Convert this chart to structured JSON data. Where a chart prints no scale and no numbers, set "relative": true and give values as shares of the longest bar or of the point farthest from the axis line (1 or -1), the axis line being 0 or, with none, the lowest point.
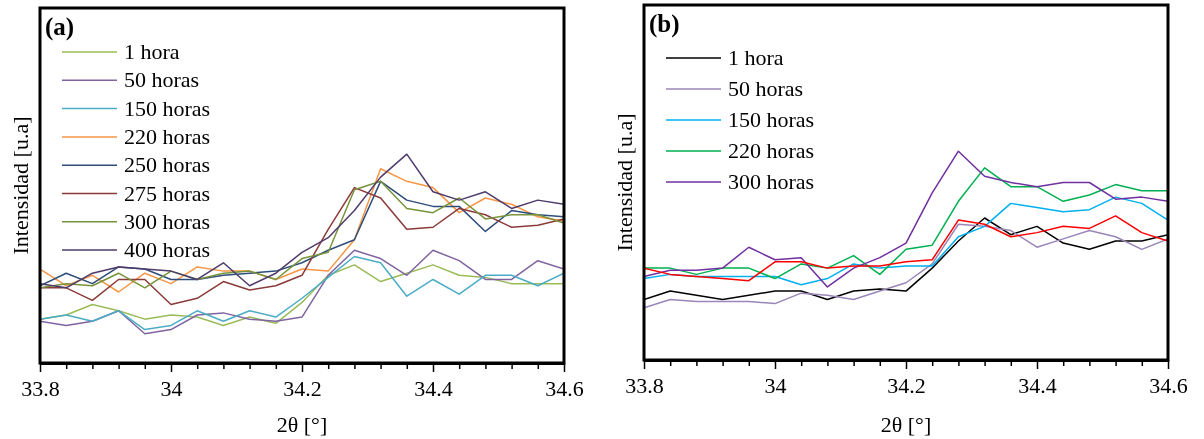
{
  "chart_data": [
    {
      "type": "line",
      "relative": true,
      "annotations": [
        "(a)"
      ],
      "xlabel": "2θ [°]",
      "ylabel": "Intensidad [u.a]",
      "legend": "top left",
      "tick_labels": "x",
      "grid": false,
      "marker": "none",
      "line_style": "solid",
      "xlim": [
        33.8,
        34.6
      ],
      "xticks": [
        33.8,
        {
          "value": 33.84,
          "label": null
        },
        {
          "value": 33.88,
          "label": null
        },
        {
          "value": 33.92,
          "label": null
        },
        {
          "value": 33.96,
          "label": null
        },
        34,
        {
          "value": 34.04,
          "label": null
        },
        {
          "value": 34.08,
          "label": null
        },
        {
          "value": 34.12,
          "label": null
        },
        {
          "value": 34.16,
          "label": null
        },
        34.2,
        {
          "value": 34.24,
          "label": null
        },
        {
          "value": 34.28,
          "label": null
        },
        {
          "value": 34.32,
          "label": null
        },
        {
          "value": 34.36,
          "label": null
        },
        34.4,
        {
          "value": 34.44,
          "label": null
        },
        {
          "value": 34.48,
          "label": null
        },
        {
          "value": 34.52,
          "label": null
        },
        {
          "value": 34.56,
          "label": null
        },
        34.6
      ],
      "x": [
        33.8,
        33.84,
        33.88,
        33.92,
        33.96,
        34,
        34.04,
        34.08,
        34.12,
        34.16,
        34.2,
        34.24,
        34.28,
        34.32,
        34.36,
        34.4,
        34.44,
        34.48,
        34.52,
        34.56,
        34.6
      ],
      "series": [
        {
          "name": "1 hora",
          "color": "#9bbb59",
          "values": [
            0.21,
            0.23,
            0.28,
            0.25,
            0.21,
            0.23,
            0.22,
            0.18,
            0.22,
            0.19,
            0.29,
            0.42,
            0.47,
            0.39,
            0.43,
            0.47,
            0.42,
            0.41,
            0.38,
            0.38,
            0.38
          ]
        },
        {
          "name": "50 horas",
          "color": "#8064a2",
          "values": [
            0.2,
            0.18,
            0.2,
            0.25,
            0.14,
            0.16,
            0.23,
            0.24,
            0.21,
            0.2,
            0.22,
            0.42,
            0.54,
            0.5,
            0.42,
            0.54,
            0.49,
            0.4,
            0.4,
            0.49,
            0.45
          ]
        },
        {
          "name": "150 horas",
          "color": "#4bacc6",
          "values": [
            0.21,
            0.23,
            0.2,
            0.25,
            0.16,
            0.18,
            0.25,
            0.2,
            0.25,
            0.22,
            0.31,
            0.41,
            0.51,
            0.48,
            0.32,
            0.4,
            0.33,
            0.42,
            0.42,
            0.37,
            0.43
          ]
        },
        {
          "name": "220 horas",
          "color": "#f79646",
          "values": [
            0.45,
            0.37,
            0.42,
            0.34,
            0.43,
            0.38,
            0.46,
            0.44,
            0.44,
            0.4,
            0.45,
            0.44,
            0.59,
            0.93,
            0.87,
            0.84,
            0.72,
            0.79,
            0.76,
            0.7,
            0.68
          ]
        },
        {
          "name": "250 horas",
          "color": "#2e4d7a",
          "values": [
            0.37,
            0.43,
            0.38,
            0.46,
            0.45,
            0.4,
            0.4,
            0.42,
            0.43,
            0.44,
            0.48,
            0.54,
            0.59,
            0.87,
            0.78,
            0.75,
            0.75,
            0.63,
            0.73,
            0.71,
            0.7
          ]
        },
        {
          "name": "275 horas",
          "color": "#8b3a3a",
          "values": [
            0.36,
            0.36,
            0.3,
            0.4,
            0.4,
            0.28,
            0.31,
            0.39,
            0.35,
            0.37,
            0.42,
            0.64,
            0.84,
            0.79,
            0.64,
            0.65,
            0.74,
            0.71,
            0.65,
            0.66,
            0.69
          ]
        },
        {
          "name": "300 horas",
          "color": "#77933c",
          "values": [
            0.36,
            0.38,
            0.37,
            0.43,
            0.36,
            0.44,
            0.4,
            0.43,
            0.44,
            0.4,
            0.5,
            0.53,
            0.83,
            0.87,
            0.74,
            0.72,
            0.79,
            0.69,
            0.71,
            0.71,
            0.67
          ]
        },
        {
          "name": "400 horas",
          "color": "#4f3b6b",
          "values": [
            0.38,
            0.36,
            0.43,
            0.46,
            0.45,
            0.44,
            0.4,
            0.48,
            0.37,
            0.43,
            0.53,
            0.6,
            0.73,
            0.89,
            1.0,
            0.82,
            0.78,
            0.82,
            0.74,
            0.78,
            0.76
          ]
        }
      ]
    },
    {
      "type": "line",
      "relative": true,
      "annotations": [
        "(b)"
      ],
      "xlabel": "2θ [°]",
      "ylabel": "Intensidad [u.a]",
      "legend": "top left",
      "tick_labels": "x",
      "grid": false,
      "marker": "none",
      "line_style": "solid",
      "xlim": [
        33.8,
        34.6
      ],
      "xticks": [
        33.8,
        {
          "value": 33.84,
          "label": null
        },
        {
          "value": 33.88,
          "label": null
        },
        {
          "value": 33.92,
          "label": null
        },
        {
          "value": 33.96,
          "label": null
        },
        34,
        {
          "value": 34.04,
          "label": null
        },
        {
          "value": 34.08,
          "label": null
        },
        {
          "value": 34.12,
          "label": null
        },
        {
          "value": 34.16,
          "label": null
        },
        34.2,
        {
          "value": 34.24,
          "label": null
        },
        {
          "value": 34.28,
          "label": null
        },
        {
          "value": 34.32,
          "label": null
        },
        {
          "value": 34.36,
          "label": null
        },
        34.4,
        {
          "value": 34.44,
          "label": null
        },
        {
          "value": 34.48,
          "label": null
        },
        {
          "value": 34.52,
          "label": null
        },
        {
          "value": 34.56,
          "label": null
        },
        34.6
      ],
      "x": [
        33.8,
        33.84,
        33.88,
        33.92,
        33.96,
        34,
        34.04,
        34.08,
        34.12,
        34.16,
        34.2,
        34.24,
        34.28,
        34.32,
        34.36,
        34.4,
        34.44,
        34.48,
        34.52,
        34.56,
        34.6
      ],
      "series": [
        {
          "name": "1 hora",
          "color": "#000000",
          "values": [
            0.29,
            0.33,
            0.31,
            0.29,
            0.31,
            0.33,
            0.33,
            0.29,
            0.33,
            0.34,
            0.33,
            0.44,
            0.57,
            0.68,
            0.6,
            0.64,
            0.56,
            0.53,
            0.57,
            0.57,
            0.6
          ]
        },
        {
          "name": "50 horas",
          "color": "#9a86b8",
          "values": [
            0.25,
            0.29,
            0.28,
            0.28,
            0.28,
            0.27,
            0.32,
            0.31,
            0.29,
            0.33,
            0.37,
            0.46,
            0.65,
            0.64,
            0.62,
            0.54,
            0.58,
            0.62,
            0.59,
            0.53,
            0.58
          ]
        },
        {
          "name": "150 horas",
          "color": "#00b0f0",
          "values": [
            0.39,
            0.41,
            0.4,
            0.4,
            0.4,
            0.4,
            0.36,
            0.39,
            0.46,
            0.44,
            0.45,
            0.45,
            0.59,
            0.64,
            0.75,
            0.73,
            0.71,
            0.72,
            0.78,
            0.75,
            0.67
          ]
        },
        {
          "name": "220 horas",
          "color": "#00b050",
          "values": [
            0.44,
            0.44,
            0.41,
            0.44,
            0.44,
            0.39,
            0.46,
            0.44,
            0.5,
            0.41,
            0.53,
            0.55,
            0.76,
            0.92,
            0.83,
            0.83,
            0.76,
            0.79,
            0.84,
            0.81,
            0.81
          ]
        },
        {
          "name": "300 horas",
          "color": "#7030a0",
          "values": [
            0.4,
            0.43,
            0.43,
            0.44,
            0.54,
            0.48,
            0.49,
            0.35,
            0.44,
            0.49,
            0.56,
            0.8,
            1.0,
            0.88,
            0.85,
            0.83,
            0.85,
            0.85,
            0.77,
            0.78,
            0.76
          ]
        },
        {
          "color": "#ff0000",
          "values": [
            0.44,
            0.41,
            0.4,
            0.39,
            0.38,
            0.47,
            0.47,
            0.44,
            0.45,
            0.45,
            0.47,
            0.48,
            0.67,
            0.65,
            0.59,
            0.61,
            0.64,
            0.63,
            0.69,
            0.61,
            0.57
          ]
        }
      ]
    }
  ]
}
